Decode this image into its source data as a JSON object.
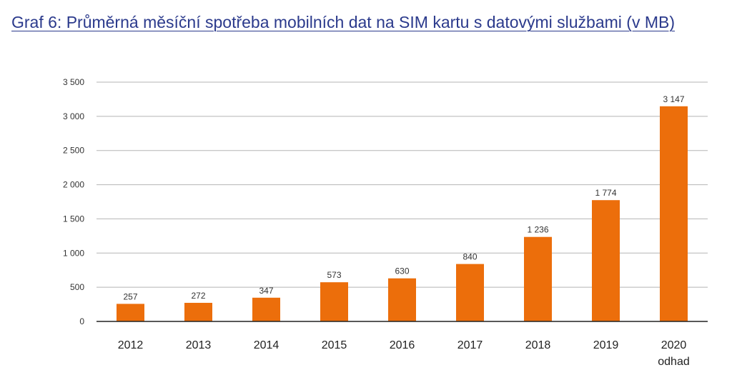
{
  "chart_data": {
    "type": "bar",
    "title": "Graf 6: Průměrná měsíční spotřeba mobilních dat na SIM kartu s datovými službami (v MB)",
    "categories": [
      "2012",
      "2013",
      "2014",
      "2015",
      "2016",
      "2017",
      "2018",
      "2019",
      "2020"
    ],
    "category_sublabels": [
      "",
      "",
      "",
      "",
      "",
      "",
      "",
      "",
      "odhad"
    ],
    "values": [
      257,
      272,
      347,
      573,
      630,
      840,
      1236,
      1774,
      3147
    ],
    "value_labels": [
      "257",
      "272",
      "347",
      "573",
      "630",
      "840",
      "1 236",
      "1 774",
      "3 147"
    ],
    "yticks": [
      0,
      500,
      1000,
      1500,
      2000,
      2500,
      3000,
      3500
    ],
    "ytick_labels": [
      "0",
      "500",
      "1 000",
      "1 500",
      "2 000",
      "2 500",
      "3 000",
      "3 500"
    ],
    "ylim": [
      0,
      3500
    ],
    "grid": true,
    "colors": {
      "bar": "#ec6e0b",
      "grid": "#b5b5b5",
      "title": "#2b3a8c"
    }
  }
}
